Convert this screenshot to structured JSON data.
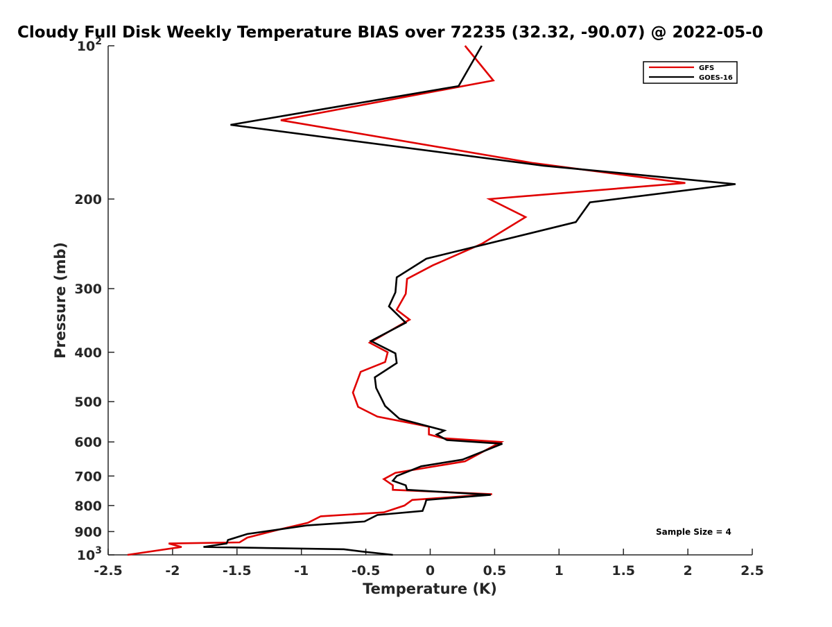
{
  "chart_data": {
    "type": "line",
    "title": "Cloudy Full Disk Weekly Temperature BIAS over 72235 (32.32, -90.07) @ 2022-05-0",
    "xlabel": "Temperature (K)",
    "ylabel": "Pressure (mb)",
    "xlim": [
      -2.5,
      2.5
    ],
    "ylim": [
      100,
      1000
    ],
    "y_scale": "log",
    "y_reversed": true,
    "grid": false,
    "legend_position": "top-right",
    "x_ticks": [
      "-2.5",
      "-2",
      "-1.5",
      "-1",
      "-0.5",
      "0",
      "0.5",
      "1",
      "1.5",
      "2",
      "2.5"
    ],
    "x_tick_values": [
      -2.5,
      -2,
      -1.5,
      -1,
      -0.5,
      0,
      0.5,
      1,
      1.5,
      2,
      2.5
    ],
    "y_ticks": [
      {
        "value": 100,
        "base": "10",
        "exp": "2"
      },
      {
        "value": 200,
        "label": "200"
      },
      {
        "value": 300,
        "label": "300"
      },
      {
        "value": 400,
        "label": "400"
      },
      {
        "value": 500,
        "label": "500"
      },
      {
        "value": 600,
        "label": "600"
      },
      {
        "value": 700,
        "label": "700"
      },
      {
        "value": 800,
        "label": "800"
      },
      {
        "value": 900,
        "label": "900"
      },
      {
        "value": 1000,
        "base": "10",
        "exp": "3"
      }
    ],
    "annotation": "Sample Size = 4",
    "series": [
      {
        "name": "GFS",
        "color": "#e00000",
        "points": [
          [
            0.27,
            100
          ],
          [
            0.49,
            117
          ],
          [
            -1.16,
            140
          ],
          [
            0.8,
            170
          ],
          [
            1.98,
            186
          ],
          [
            0.46,
            200
          ],
          [
            0.74,
            217
          ],
          [
            0.4,
            245
          ],
          [
            0.02,
            270
          ],
          [
            -0.18,
            287
          ],
          [
            -0.19,
            307
          ],
          [
            -0.26,
            330
          ],
          [
            -0.16,
            345
          ],
          [
            -0.47,
            383
          ],
          [
            -0.33,
            400
          ],
          [
            -0.35,
            418
          ],
          [
            -0.54,
            437
          ],
          [
            -0.6,
            480
          ],
          [
            -0.56,
            512
          ],
          [
            -0.41,
            535
          ],
          [
            -0.01,
            560
          ],
          [
            -0.01,
            580
          ],
          [
            0.1,
            590
          ],
          [
            0.55,
            600
          ],
          [
            0.27,
            655
          ],
          [
            -0.27,
            690
          ],
          [
            -0.36,
            710
          ],
          [
            -0.29,
            730
          ],
          [
            -0.29,
            745
          ],
          [
            0.48,
            760
          ],
          [
            -0.14,
            780
          ],
          [
            -0.2,
            800
          ],
          [
            -0.36,
            825
          ],
          [
            -0.85,
            840
          ],
          [
            -0.95,
            865
          ],
          [
            -1.16,
            890
          ],
          [
            -1.42,
            925
          ],
          [
            -1.48,
            945
          ],
          [
            -2.03,
            950
          ],
          [
            -1.93,
            965
          ],
          [
            -2.35,
            1000
          ]
        ]
      },
      {
        "name": "GOES-16",
        "color": "#000000",
        "points": [
          [
            0.4,
            100
          ],
          [
            0.22,
            120
          ],
          [
            -1.55,
            143
          ],
          [
            0.88,
            172
          ],
          [
            2.37,
            187
          ],
          [
            1.24,
            203
          ],
          [
            1.13,
            222
          ],
          [
            -0.03,
            262
          ],
          [
            -0.26,
            285
          ],
          [
            -0.27,
            305
          ],
          [
            -0.32,
            325
          ],
          [
            -0.19,
            350
          ],
          [
            -0.46,
            380
          ],
          [
            -0.27,
            402
          ],
          [
            -0.26,
            420
          ],
          [
            -0.43,
            448
          ],
          [
            -0.42,
            470
          ],
          [
            -0.35,
            510
          ],
          [
            -0.24,
            540
          ],
          [
            0.11,
            570
          ],
          [
            0.05,
            580
          ],
          [
            0.13,
            595
          ],
          [
            0.56,
            605
          ],
          [
            0.25,
            650
          ],
          [
            -0.07,
            670
          ],
          [
            -0.26,
            700
          ],
          [
            -0.29,
            715
          ],
          [
            -0.19,
            730
          ],
          [
            -0.18,
            745
          ],
          [
            0.47,
            762
          ],
          [
            -0.03,
            780
          ],
          [
            -0.04,
            795
          ],
          [
            -0.06,
            820
          ],
          [
            -0.41,
            835
          ],
          [
            -0.51,
            860
          ],
          [
            -0.95,
            875
          ],
          [
            -1.42,
            910
          ],
          [
            -1.57,
            935
          ],
          [
            -1.58,
            950
          ],
          [
            -1.76,
            965
          ],
          [
            -0.67,
            975
          ],
          [
            -0.53,
            985
          ],
          [
            -0.29,
            1000
          ]
        ]
      }
    ]
  }
}
